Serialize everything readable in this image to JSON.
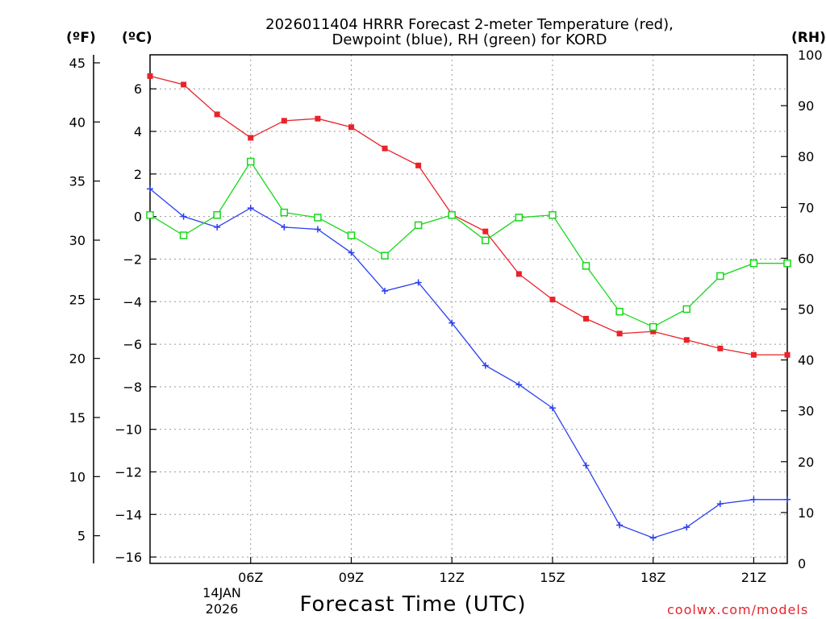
{
  "chart_data": {
    "type": "line",
    "title_lines": [
      "2026011404 HRRR Forecast 2-meter Temperature (red),",
      "Dewpoint (blue), RH (green) for KORD"
    ],
    "units": {
      "fahrenheit": "(ºF)",
      "celsius": "(ºC)",
      "rh": "(RH)"
    },
    "xlabel": "Forecast Time (UTC)",
    "date_labels": [
      "14JAN",
      "2026"
    ],
    "credit": "coolwx.com/models",
    "x_hours": [
      3,
      4,
      5,
      6,
      7,
      8,
      9,
      10,
      11,
      12,
      13,
      14,
      15,
      16,
      17,
      18,
      19,
      20,
      21,
      22
    ],
    "x_range_hours": [
      3,
      22
    ],
    "x_ticks": [
      {
        "hour": 6,
        "label": "06Z"
      },
      {
        "hour": 9,
        "label": "09Z"
      },
      {
        "hour": 12,
        "label": "12Z"
      },
      {
        "hour": 15,
        "label": "15Z"
      },
      {
        "hour": 18,
        "label": "18Z"
      },
      {
        "hour": 21,
        "label": "21Z"
      }
    ],
    "celsius_axis": {
      "range": [
        -16.3,
        7.6
      ],
      "ticks": [
        6,
        4,
        2,
        0,
        -2,
        -4,
        -6,
        -8,
        -10,
        -12,
        -14,
        -16
      ],
      "labels": [
        "6",
        "4",
        "2",
        "0",
        "−2",
        "−4",
        "−6",
        "−8",
        "−10",
        "−12",
        "−14",
        "−16"
      ]
    },
    "fahrenheit_axis": {
      "ticks": [
        45,
        40,
        35,
        30,
        25,
        20,
        15,
        10,
        5
      ],
      "labels": [
        "45",
        "40",
        "35",
        "30",
        "25",
        "20",
        "15",
        "10",
        "5"
      ]
    },
    "rh_axis": {
      "range": [
        0,
        100
      ],
      "ticks": [
        100,
        90,
        80,
        70,
        60,
        50,
        40,
        30,
        20,
        10,
        0
      ],
      "labels": [
        "100",
        "90",
        "80",
        "70",
        "60",
        "50",
        "40",
        "30",
        "20",
        "10",
        "0"
      ]
    },
    "series": [
      {
        "name": "2-meter Temperature",
        "color": "#e8232a",
        "axis": "celsius",
        "marker": "filled-square",
        "values": [
          6.6,
          6.2,
          4.8,
          3.7,
          4.5,
          4.6,
          4.2,
          3.2,
          2.4,
          0.1,
          -0.7,
          -2.7,
          -3.9,
          -4.8,
          -5.5,
          -5.4,
          -5.8,
          -6.2,
          -6.5,
          -6.5
        ]
      },
      {
        "name": "Dewpoint",
        "color": "#2b3ff0",
        "axis": "celsius",
        "marker": "plus",
        "values": [
          1.3,
          0.0,
          -0.5,
          0.4,
          -0.5,
          -0.6,
          -1.7,
          -3.5,
          -3.1,
          -5.0,
          -7.0,
          -7.9,
          -9.0,
          -11.7,
          -14.5,
          -15.1,
          -14.6,
          -13.5,
          -13.3,
          -13.3
        ]
      },
      {
        "name": "RH",
        "color": "#17d81a",
        "axis": "rh",
        "marker": "open-square",
        "values": [
          68.5,
          64.5,
          68.5,
          79,
          69,
          68,
          64.5,
          60.5,
          66.5,
          68.5,
          63.5,
          68,
          68.5,
          58.5,
          49.5,
          46.5,
          50,
          56.5,
          59,
          59
        ]
      }
    ]
  }
}
